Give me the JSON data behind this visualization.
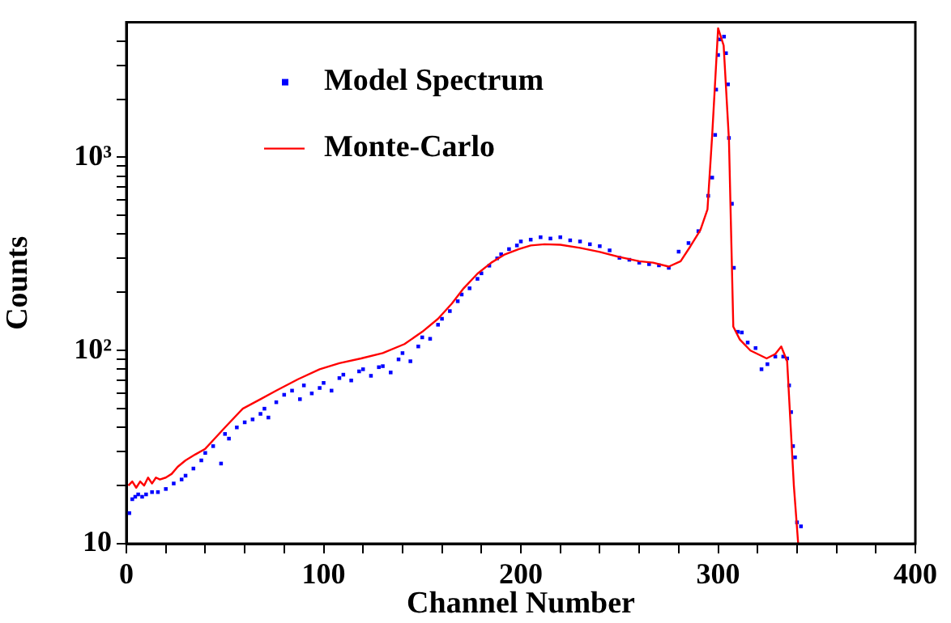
{
  "chart_data": {
    "type": "scatter",
    "xlabel": "Channel Number",
    "ylabel": "Counts",
    "log": "y",
    "grid": false,
    "legend": "top left",
    "xlim": [
      0,
      400
    ],
    "ylim": [
      10,
      5000
    ],
    "xticks": [
      0,
      {
        "value": 20,
        "label": null
      },
      {
        "value": 40,
        "label": null
      },
      {
        "value": 60,
        "label": null
      },
      {
        "value": 80,
        "label": null
      },
      100,
      {
        "value": 120,
        "label": null
      },
      {
        "value": 140,
        "label": null
      },
      {
        "value": 160,
        "label": null
      },
      {
        "value": 180,
        "label": null
      },
      200,
      {
        "value": 220,
        "label": null
      },
      {
        "value": 240,
        "label": null
      },
      {
        "value": 260,
        "label": null
      },
      {
        "value": 280,
        "label": null
      },
      300,
      {
        "value": 320,
        "label": null
      },
      {
        "value": 340,
        "label": null
      },
      {
        "value": 360,
        "label": null
      },
      {
        "value": 380,
        "label": null
      },
      400
    ],
    "yticks": [
      10,
      {
        "value": 20,
        "label": null
      },
      {
        "value": 30,
        "label": null
      },
      {
        "value": 40,
        "label": null
      },
      {
        "value": 50,
        "label": null
      },
      {
        "value": 60,
        "label": null
      },
      {
        "value": 70,
        "label": null
      },
      {
        "value": 80,
        "label": null
      },
      {
        "value": 90,
        "label": null
      },
      {
        "value": 100,
        "label": "10²"
      },
      {
        "value": 200,
        "label": null
      },
      {
        "value": 300,
        "label": null
      },
      {
        "value": 400,
        "label": null
      },
      {
        "value": 500,
        "label": null
      },
      {
        "value": 600,
        "label": null
      },
      {
        "value": 700,
        "label": null
      },
      {
        "value": 800,
        "label": null
      },
      {
        "value": 900,
        "label": null
      },
      {
        "value": 1000,
        "label": "10³"
      },
      {
        "value": 2000,
        "label": null
      },
      {
        "value": 3000,
        "label": null
      },
      {
        "value": 4000,
        "label": null
      }
    ],
    "series": [
      {
        "name": "Model Spectrum",
        "type": "scatter",
        "marker": "square",
        "color": "#0000ff",
        "x": [
          1.5,
          3,
          4.5,
          6,
          8,
          10,
          13,
          16,
          20,
          24,
          28,
          30,
          34,
          38,
          40,
          44,
          48,
          50,
          52,
          56,
          60,
          64,
          68,
          70,
          72,
          76,
          80,
          84,
          88,
          90,
          94,
          98,
          100,
          104,
          108,
          110,
          114,
          118,
          120,
          124,
          128,
          130,
          134,
          138,
          140,
          144,
          148,
          150,
          154,
          158,
          160,
          164,
          168,
          170,
          174,
          178,
          180,
          184,
          188,
          190,
          194,
          198,
          200,
          205,
          210,
          215,
          220,
          225,
          230,
          235,
          240,
          245,
          250,
          255,
          260,
          265,
          270,
          275,
          280,
          285,
          290,
          295,
          297,
          298.5,
          299,
          300,
          301,
          303,
          304,
          305,
          305.5,
          307,
          308,
          310,
          312,
          315,
          319,
          322,
          325,
          329,
          333,
          335,
          336,
          337,
          338,
          339,
          340,
          342
        ],
        "values": [
          14.4,
          17,
          17.5,
          18,
          17.5,
          18,
          18.5,
          18.5,
          19.2,
          20.5,
          21.5,
          22.5,
          24.5,
          27,
          29.5,
          32,
          26,
          37,
          35,
          40,
          42.5,
          44,
          47,
          50,
          45,
          54,
          59,
          62,
          56,
          66,
          60,
          64,
          68,
          62,
          72,
          75,
          70,
          78,
          80,
          74,
          82,
          83,
          77,
          90,
          97,
          88,
          105,
          117,
          115,
          136,
          146,
          160,
          180,
          195,
          210,
          235,
          251,
          275,
          300,
          315,
          335,
          350,
          367,
          375,
          386,
          380,
          386,
          372,
          367,
          355,
          347,
          330,
          302,
          295,
          285,
          280,
          276,
          268,
          325,
          360,
          415,
          633,
          785,
          1306,
          2240,
          3390,
          4080,
          4220,
          3460,
          2390,
          1260,
          575,
          268,
          125,
          124,
          110,
          103,
          80,
          85,
          93,
          93,
          91,
          66,
          48,
          32,
          28,
          12.9,
          12.3
        ]
      },
      {
        "name": "Monte-Carlo",
        "type": "line",
        "marker": "none",
        "color": "#ff0000",
        "x": [
          1,
          3,
          5,
          7,
          9,
          11,
          13,
          15,
          17,
          20,
          23,
          26,
          30,
          35,
          40,
          50,
          59,
          68,
          76,
          87,
          98,
          108,
          119,
          130,
          141,
          150,
          158,
          165,
          171,
          178,
          185,
          192,
          199,
          205,
          212,
          220,
          230,
          240,
          250,
          260,
          267,
          275,
          281,
          286,
          291,
          294.6,
          297,
          300,
          302.8,
          305.5,
          307.7,
          311,
          316.4,
          320,
          324.6,
          329,
          332,
          335,
          338.4,
          340.6
        ],
        "values": [
          20,
          21,
          19.5,
          21,
          20,
          22,
          20.5,
          22,
          21.5,
          22,
          23,
          25,
          27,
          29,
          31,
          40,
          50,
          56,
          62,
          71,
          80,
          86,
          91,
          97,
          108,
          125,
          146,
          175,
          210,
          250,
          285,
          315,
          335,
          350,
          355,
          353,
          340,
          324,
          305,
          290,
          285,
          272,
          290,
          347,
          420,
          537,
          1306,
          4660,
          3800,
          1230,
          133,
          114,
          100,
          96,
          91,
          96,
          105,
          88,
          20,
          10
        ]
      }
    ]
  }
}
